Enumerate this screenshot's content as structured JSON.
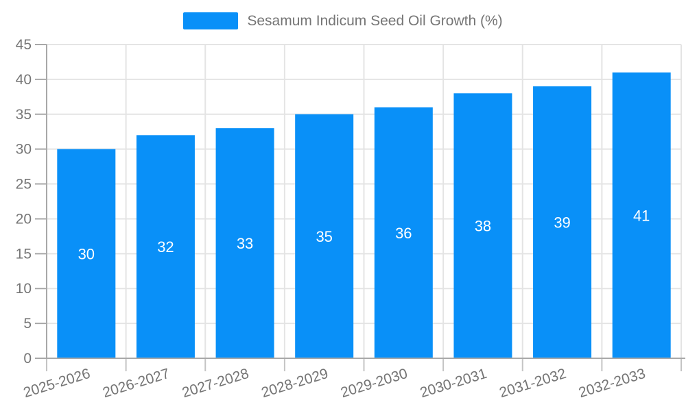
{
  "chart_data": {
    "type": "bar",
    "legend": "Sesamum Indicum Seed Oil Growth (%)",
    "categories": [
      "2025-2026",
      "2026-2027",
      "2027-2028",
      "2028-2029",
      "2029-2030",
      "2030-2031",
      "2031-2032",
      "2032-2033"
    ],
    "values": [
      30,
      32,
      33,
      35,
      36,
      38,
      39,
      41
    ],
    "title": "",
    "xlabel": "",
    "ylabel": "",
    "ylim": [
      0,
      45
    ],
    "yticks": [
      0,
      5,
      10,
      15,
      20,
      25,
      30,
      35,
      40,
      45
    ],
    "grid": true,
    "legend_position": "top-center",
    "bar_label_position": "inside-middle",
    "x_label_rotation_deg": -17,
    "colors": {
      "bar": "#0990F8",
      "bar_label": "#FFFFFF",
      "axis_text": "#757575",
      "axis_line": "#A8A8A8",
      "tick_line": "#C4C4C4",
      "grid_line": "#E4E4E4",
      "background": "#FFFFFF"
    }
  }
}
